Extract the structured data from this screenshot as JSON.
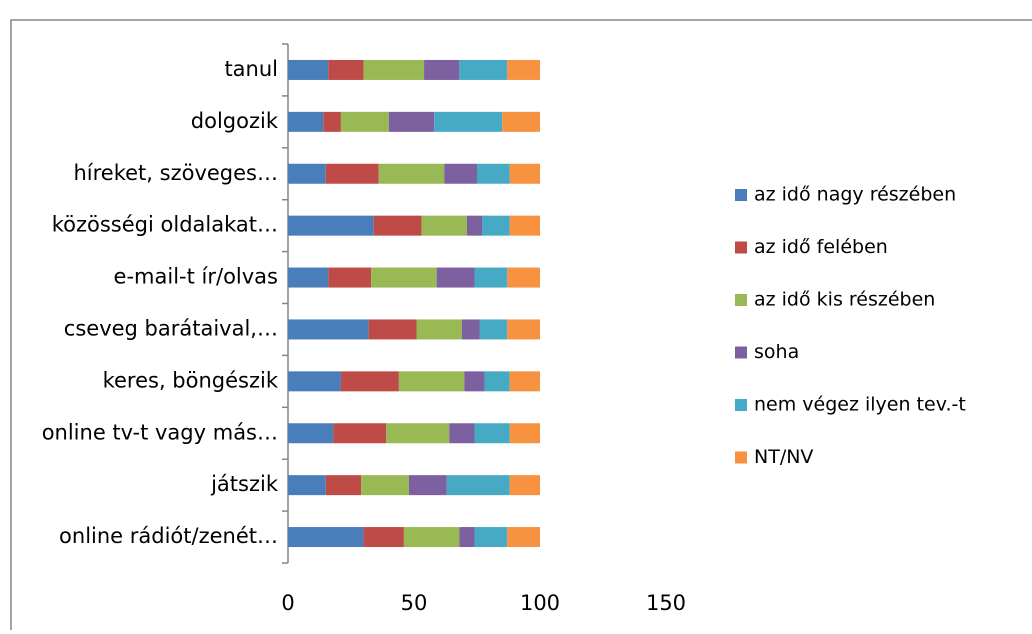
{
  "chart_data": {
    "type": "stacked-bar-horizontal",
    "categories": [
      "tanul",
      "dolgozik",
      "híreket, szöveges…",
      "közösségi oldalakat…",
      "e-mail-t ír/olvas",
      "cseveg barátaival,…",
      "keres, böngészik",
      "online tv-t vagy más…",
      "játszik",
      "online rádiót/zenét…"
    ],
    "series": [
      {
        "name": "az idő nagy részében",
        "color": "#4a7ebb",
        "values": [
          16,
          14,
          15,
          34,
          16,
          32,
          21,
          18,
          15,
          30
        ]
      },
      {
        "name": "az idő felében",
        "color": "#be4b48",
        "values": [
          14,
          7,
          21,
          19,
          17,
          19,
          23,
          21,
          14,
          16
        ]
      },
      {
        "name": "az idő kis részében",
        "color": "#98b954",
        "values": [
          24,
          19,
          26,
          18,
          26,
          18,
          26,
          25,
          19,
          22
        ]
      },
      {
        "name": "soha",
        "color": "#7d60a0",
        "values": [
          14,
          18,
          13,
          6,
          15,
          7,
          8,
          10,
          15,
          6
        ]
      },
      {
        "name": "nem végez ilyen tev.-t",
        "color": "#46aac5",
        "values": [
          19,
          27,
          13,
          11,
          13,
          11,
          10,
          14,
          25,
          13
        ]
      },
      {
        "name": "NT/NV",
        "color": "#f69240",
        "values": [
          13,
          15,
          12,
          12,
          13,
          13,
          12,
          12,
          12,
          13
        ]
      }
    ],
    "xlim": [
      0,
      150
    ],
    "xticks": [
      0,
      50,
      100,
      150
    ],
    "legend": "right"
  }
}
